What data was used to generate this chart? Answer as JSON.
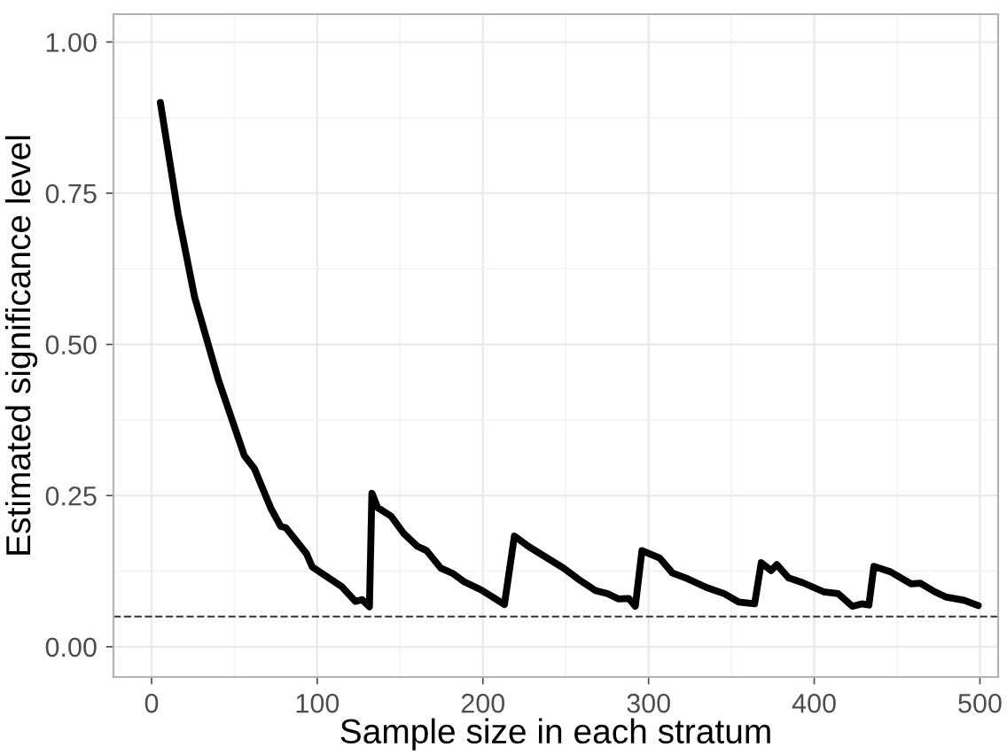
{
  "chart_data": {
    "type": "line",
    "xlabel": "Sample size in each stratum",
    "ylabel": "Estimated significance level",
    "x": [
      5.3,
      16,
      26,
      40.5,
      56,
      62,
      72,
      78,
      81,
      93.5,
      97,
      115,
      123,
      127,
      131.5,
      133,
      136.5,
      144.6,
      152,
      160.5,
      166,
      174.6,
      182,
      189,
      199,
      213,
      219,
      227.5,
      248.7,
      257.5,
      268,
      275,
      282,
      288,
      292,
      296,
      306.6,
      314.4,
      324,
      335,
      345.6,
      354.4,
      364,
      368,
      374,
      377.4,
      384.5,
      393,
      405.6,
      414.4,
      423,
      428.6,
      433,
      436,
      446,
      458.5,
      464,
      472.7,
      479.8,
      490.4,
      499
    ],
    "series": [
      {
        "color": "#000000",
        "values": [
          0.9,
          0.716,
          0.578,
          0.44,
          0.316,
          0.295,
          0.229,
          0.199,
          0.197,
          0.154,
          0.132,
          0.099,
          0.075,
          0.078,
          0.066,
          0.254,
          0.23,
          0.216,
          0.188,
          0.166,
          0.159,
          0.13,
          0.121,
          0.107,
          0.094,
          0.07,
          0.183,
          0.166,
          0.13,
          0.112,
          0.093,
          0.088,
          0.079,
          0.08,
          0.067,
          0.159,
          0.147,
          0.122,
          0.112,
          0.098,
          0.088,
          0.074,
          0.071,
          0.139,
          0.126,
          0.136,
          0.114,
          0.106,
          0.091,
          0.088,
          0.067,
          0.071,
          0.069,
          0.133,
          0.124,
          0.104,
          0.105,
          0.091,
          0.082,
          0.077,
          0.068
        ]
      }
    ],
    "ref_lines": [
      {
        "axis": "y",
        "value": 0.05,
        "color": "#333333",
        "line_style": "dashed"
      }
    ],
    "xlim": [
      -23,
      511
    ],
    "ylim": [
      -0.05,
      1.046
    ],
    "xticks": [
      0,
      100,
      200,
      300,
      400,
      500
    ],
    "yticks": [
      {
        "value": 0,
        "label": "0.00"
      },
      {
        "value": 0.25,
        "label": "0.25"
      },
      {
        "value": 0.5,
        "label": "0.50"
      },
      {
        "value": 0.75,
        "label": "0.75"
      },
      {
        "value": 1,
        "label": "1.00"
      }
    ],
    "grid": true,
    "marker": "none",
    "line_style": "solid"
  }
}
